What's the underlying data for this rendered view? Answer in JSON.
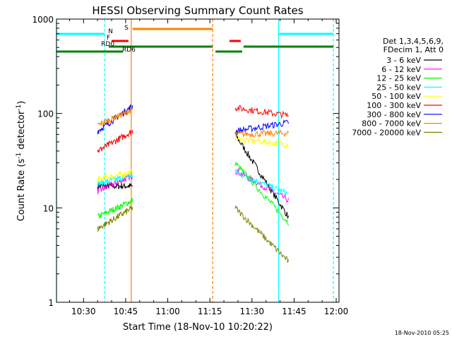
{
  "chart_data": {
    "type": "line",
    "title": "HESSI Observing Summary Count Rates",
    "xlabel": "Start Time (18-Nov-10 10:20:22)",
    "ylabel": "Count Rate (s^-1 detector^-1)",
    "y_scale": "log",
    "xlim": [
      "10:20:22",
      "12:01:00"
    ],
    "ylim": [
      1,
      1000
    ],
    "x_ticks": [
      "10:30",
      "10:45",
      "11:00",
      "11:15",
      "11:30",
      "11:45",
      "12:00"
    ],
    "y_ticks": [
      "1",
      "10",
      "100",
      "1000"
    ],
    "timestamp": "18-Nov-2010 05:25",
    "legend": {
      "position": "right",
      "header": [
        "Det 1,3,4,5,6,9,",
        "FDecim 1, Att 0"
      ]
    },
    "flags": [
      {
        "label": "N",
        "color": "#00ffff",
        "segments": [
          [
            "10:20:22",
            "10:37:30"
          ],
          [
            "11:39:30",
            "11:59:00"
          ]
        ]
      },
      {
        "label": "F",
        "color": "#ff0000",
        "segments": [
          [
            "10:40:00",
            "10:46:00"
          ]
        ]
      },
      {
        "label": "S",
        "color": "#ff8000",
        "segments": [
          [
            "10:47:30",
            "11:16:00"
          ]
        ]
      },
      {
        "label": "",
        "color": "#ff0000",
        "segments": [
          [
            "11:22:00",
            "11:26:00"
          ]
        ]
      },
      {
        "label": "RD0",
        "color": "#008000",
        "segments": [
          [
            "10:39:00",
            "11:16:00"
          ],
          [
            "11:27:00",
            "11:59:00"
          ]
        ]
      },
      {
        "label": "RD6",
        "color": "#008000",
        "segments": [
          [
            "10:20:22",
            "10:44:00"
          ],
          [
            "11:17:00",
            "11:26:30"
          ]
        ]
      }
    ],
    "vlines": [
      {
        "time": "10:20:22",
        "color": "#00ffff",
        "style": "solid"
      },
      {
        "time": "10:37:30",
        "color": "#00ffff",
        "style": "dashed"
      },
      {
        "time": "10:47:00",
        "color": "#ff8000",
        "style": "solid"
      },
      {
        "time": "11:16:00",
        "color": "#ff8000",
        "style": "dashed"
      },
      {
        "time": "11:39:30",
        "color": "#00ffff",
        "style": "solid"
      },
      {
        "time": "11:59:00",
        "color": "#00ffff",
        "style": "dashed"
      }
    ],
    "segments": [
      [
        "10:35:00",
        "10:47:30"
      ],
      [
        "11:24:00",
        "11:43:00"
      ]
    ],
    "series": [
      {
        "name": "3 - 6 keV",
        "color": "#000000",
        "start": [
          17,
          17
        ],
        "end": [
          60,
          8
        ]
      },
      {
        "name": "6 - 12 keV",
        "color": "#ff00ff",
        "start": [
          15,
          22
        ],
        "end": [
          25,
          12
        ]
      },
      {
        "name": "12 - 25 keV",
        "color": "#00ff00",
        "start": [
          8,
          12
        ],
        "end": [
          30,
          7
        ]
      },
      {
        "name": "25 - 50 keV",
        "color": "#00ffff",
        "start": [
          18,
          22
        ],
        "end": [
          24,
          14
        ]
      },
      {
        "name": "50 - 100 keV",
        "color": "#ffff00",
        "start": [
          20,
          24
        ],
        "end": [
          54,
          47
        ]
      },
      {
        "name": "100 - 300 keV",
        "color": "#ff0000",
        "start": [
          40,
          65
        ],
        "end": [
          115,
          95
        ]
      },
      {
        "name": "300 - 800 keV",
        "color": "#0000ff",
        "start": [
          65,
          120
        ],
        "end": [
          65,
          80
        ]
      },
      {
        "name": "800 - 7000 keV",
        "color": "#ff8000",
        "start": [
          75,
          110
        ],
        "end": [
          60,
          62
        ]
      },
      {
        "name": "7000 - 20000 keV",
        "color": "#808000",
        "start": [
          6,
          10
        ],
        "end": [
          10,
          2.7
        ]
      }
    ]
  }
}
